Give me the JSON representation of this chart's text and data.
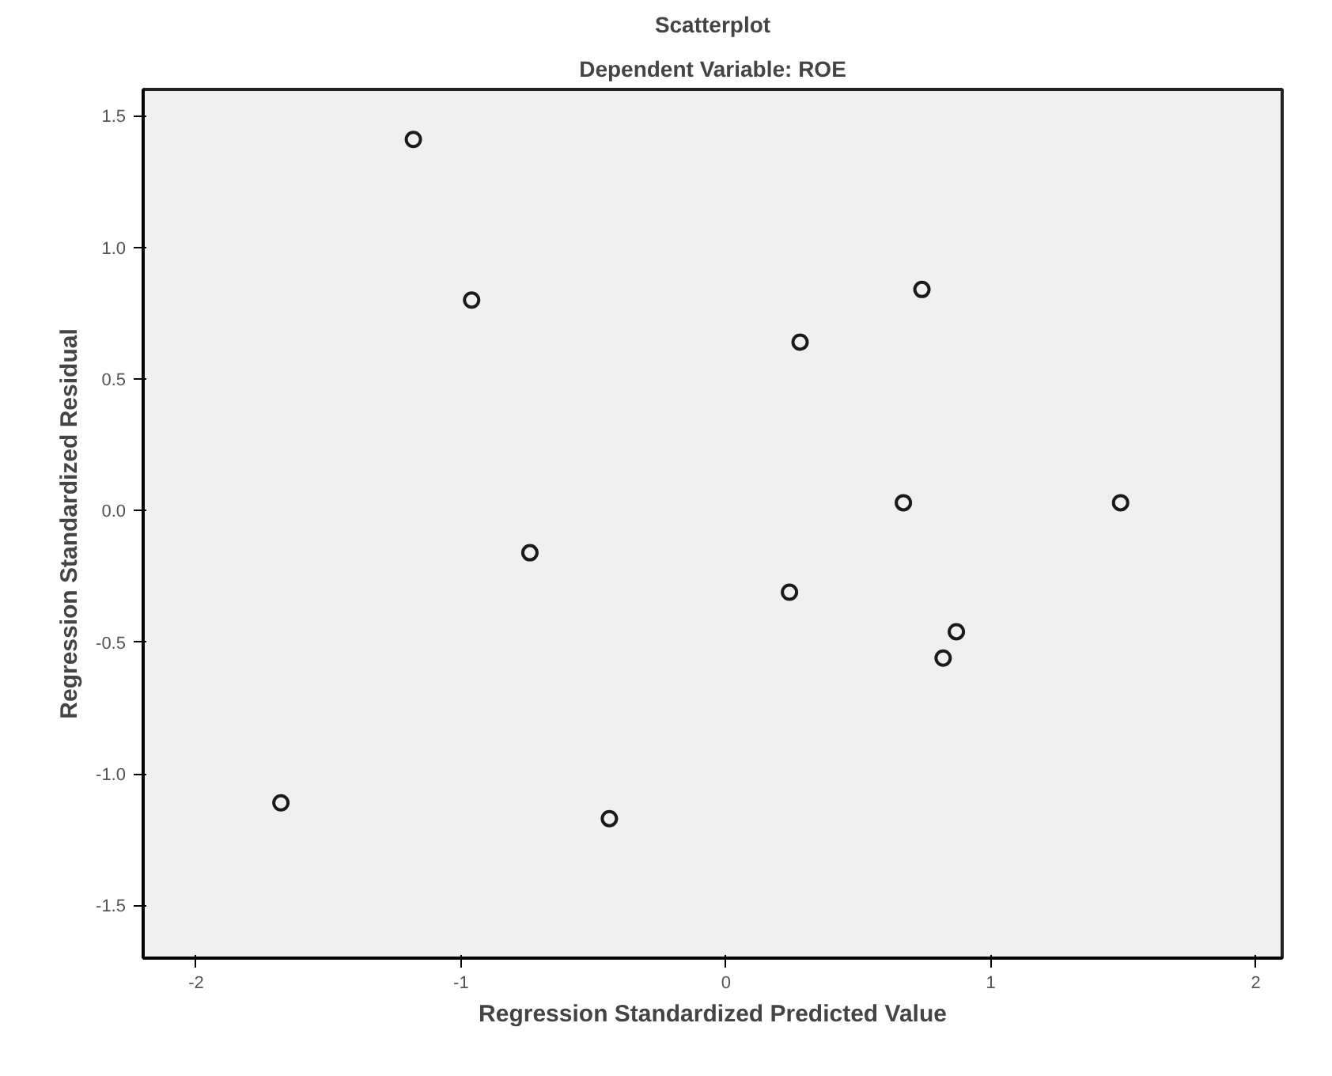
{
  "chart_data": {
    "type": "scatter",
    "title": "Scatterplot",
    "subtitle": "Dependent Variable: ROE",
    "xlabel": "Regression Standardized Predicted Value",
    "ylabel": "Regression Standardized Residual",
    "x": [
      -1.68,
      -1.18,
      -0.96,
      -0.74,
      -0.44,
      0.24,
      0.28,
      0.67,
      0.74,
      0.82,
      0.87,
      1.49
    ],
    "values": [
      -1.11,
      1.41,
      0.8,
      -0.16,
      -1.17,
      -0.31,
      0.64,
      0.03,
      0.84,
      -0.56,
      -0.46,
      0.03
    ],
    "color": "#1a1a1a",
    "marker": "circle",
    "xlim": [
      -2.2,
      2.1
    ],
    "ylim": [
      -1.7,
      1.6
    ],
    "xticks": [
      -2,
      -1,
      0,
      1,
      2
    ],
    "yticks": [
      {
        "value": -1.5,
        "label": "-1.5"
      },
      {
        "value": -1.0,
        "label": "-1.0"
      },
      {
        "value": -0.5,
        "label": "-0.5"
      },
      {
        "value": 0.0,
        "label": "0.0"
      },
      {
        "value": 0.5,
        "label": "0.5"
      },
      {
        "value": 1.0,
        "label": "1.0"
      },
      {
        "value": 1.5,
        "label": "1.5"
      }
    ],
    "grid": false
  }
}
